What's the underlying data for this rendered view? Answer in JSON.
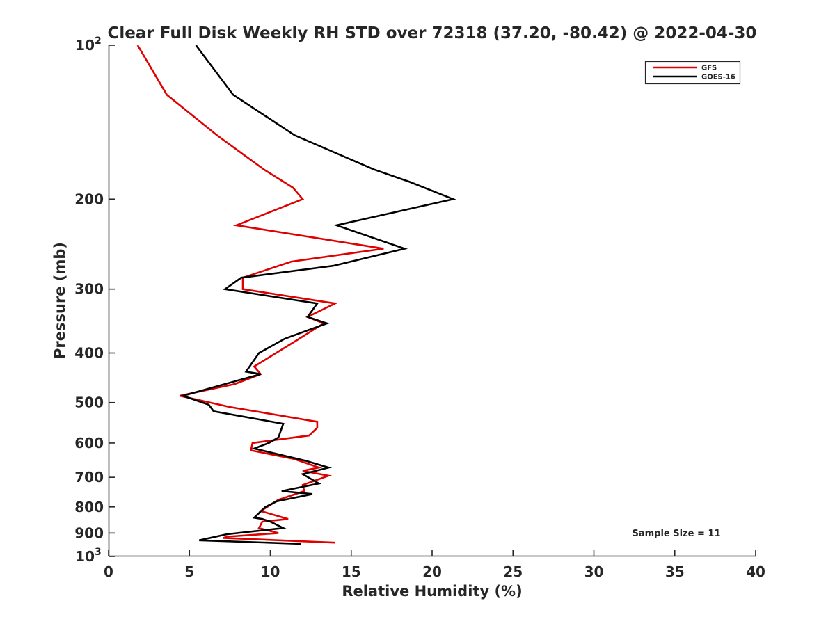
{
  "chart_data": {
    "type": "line",
    "title": "Clear Full Disk Weekly RH STD over 72318 (37.20, -80.42) @ 2022-04-30",
    "xlabel": "Relative Humidity (%)",
    "ylabel": "Pressure (mb)",
    "xlim": [
      0,
      40
    ],
    "ylim": [
      100,
      1000
    ],
    "y_scale": "log",
    "y_reversed": true,
    "grid": false,
    "legend_position": "top-right",
    "annotation": "Sample Size = 11",
    "x_ticks": [
      0,
      5,
      10,
      15,
      20,
      25,
      30,
      35,
      40
    ],
    "x_tick_labels": [
      "0",
      "5",
      "10",
      "15",
      "20",
      "25",
      "30",
      "35",
      "40"
    ],
    "y_ticks": [
      100,
      200,
      300,
      400,
      500,
      600,
      700,
      800,
      900,
      1000
    ],
    "y_tick_labels": [
      {
        "base": "10",
        "sup": "2"
      },
      {
        "base": "200"
      },
      {
        "base": "300"
      },
      {
        "base": "400"
      },
      {
        "base": "500"
      },
      {
        "base": "600"
      },
      {
        "base": "700"
      },
      {
        "base": "800"
      },
      {
        "base": "900"
      },
      {
        "base": "10",
        "sup": "3"
      }
    ],
    "series": [
      {
        "name": "GFS",
        "color": "#e00000",
        "points": [
          [
            1.8,
            100
          ],
          [
            3.6,
            125
          ],
          [
            6.7,
            150
          ],
          [
            9.6,
            175
          ],
          [
            11.4,
            190
          ],
          [
            12.0,
            200
          ],
          [
            7.9,
            225
          ],
          [
            17.0,
            250
          ],
          [
            11.3,
            265
          ],
          [
            8.3,
            285
          ],
          [
            8.3,
            300
          ],
          [
            14.0,
            320
          ],
          [
            12.3,
            340
          ],
          [
            13.3,
            350
          ],
          [
            11.5,
            380
          ],
          [
            9.0,
            425
          ],
          [
            9.4,
            440
          ],
          [
            7.8,
            460
          ],
          [
            4.4,
            485
          ],
          [
            7.5,
            510
          ],
          [
            12.9,
            545
          ],
          [
            12.9,
            560
          ],
          [
            12.4,
            580
          ],
          [
            8.9,
            600
          ],
          [
            8.8,
            620
          ],
          [
            11.5,
            645
          ],
          [
            13.0,
            670
          ],
          [
            12.0,
            680
          ],
          [
            13.6,
            695
          ],
          [
            12.0,
            725
          ],
          [
            12.1,
            745
          ],
          [
            10.5,
            775
          ],
          [
            9.4,
            815
          ],
          [
            11.1,
            845
          ],
          [
            9.5,
            855
          ],
          [
            9.3,
            880
          ],
          [
            10.5,
            900
          ],
          [
            7.3,
            915
          ],
          [
            7.1,
            920
          ],
          [
            14.0,
            940
          ]
        ]
      },
      {
        "name": "GOES-16",
        "color": "#000000",
        "points": [
          [
            5.4,
            100
          ],
          [
            7.7,
            125
          ],
          [
            11.5,
            150
          ],
          [
            16.4,
            175
          ],
          [
            18.6,
            185
          ],
          [
            21.3,
            200
          ],
          [
            14.1,
            225
          ],
          [
            18.3,
            250
          ],
          [
            13.9,
            270
          ],
          [
            8.2,
            285
          ],
          [
            7.2,
            300
          ],
          [
            12.9,
            320
          ],
          [
            12.3,
            340
          ],
          [
            13.5,
            350
          ],
          [
            10.9,
            375
          ],
          [
            9.3,
            400
          ],
          [
            8.5,
            435
          ],
          [
            9.4,
            440
          ],
          [
            4.6,
            485
          ],
          [
            6.2,
            505
          ],
          [
            6.5,
            520
          ],
          [
            10.8,
            550
          ],
          [
            10.5,
            585
          ],
          [
            9.9,
            600
          ],
          [
            9.0,
            615
          ],
          [
            12.2,
            650
          ],
          [
            13.6,
            670
          ],
          [
            12.0,
            690
          ],
          [
            13.0,
            720
          ],
          [
            10.7,
            745
          ],
          [
            12.6,
            755
          ],
          [
            10.4,
            780
          ],
          [
            9.7,
            800
          ],
          [
            9.0,
            840
          ],
          [
            9.5,
            845
          ],
          [
            10.0,
            855
          ],
          [
            10.8,
            880
          ],
          [
            7.3,
            905
          ],
          [
            5.6,
            930
          ],
          [
            11.9,
            945
          ]
        ]
      }
    ]
  }
}
